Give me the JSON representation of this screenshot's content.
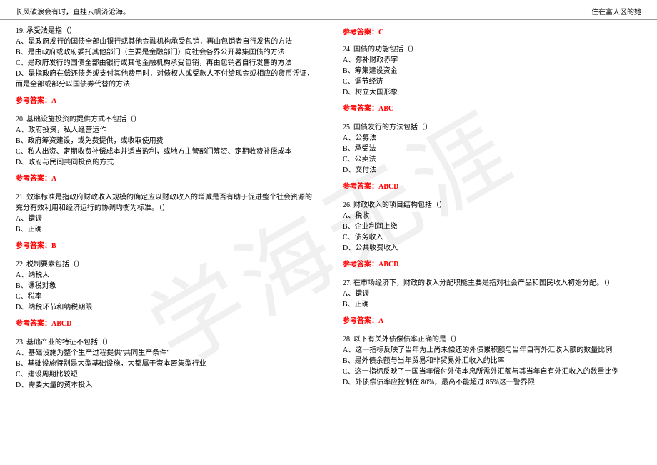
{
  "header": {
    "left": "长风破浪会有时，直挂云帆济沧海。",
    "right": "住在富人区的她"
  },
  "watermark": "学海无涯",
  "answer_label": "参考答案：",
  "left_column": {
    "q19": {
      "title": "19. 承受法是指（）",
      "opts": [
        "A、是政府发行的国债全部由银行或其他金融机构承受包销，再由包销者自行发售的方法",
        "B、是由政府或政府委托其他部门（主要是金融部门）向社会各界公开募集国债的方法",
        "C、是政府发行的国债全部由银行或其他金融机构承受包销，再由包销者自行发售的方法",
        "D、是指政府在偿还债务或支付其他费用时，对债权人或受款人不付给现金或相应的货币凭证，而是全部或部分以国债券代替的方法"
      ],
      "answer": "A"
    },
    "q20": {
      "title": "20. 基础设施投资的提供方式不包括（）",
      "opts": [
        "A、政府投资，私人经营运作",
        "B、政府筹资建设，或免费提供，或收取使用费",
        "C、私人出资、定期收费补偿成本并适当盈利，或地方主管部门筹资、定期收费补偿成本",
        "D、政府与民间共同投资的方式"
      ],
      "answer": "A"
    },
    "q21": {
      "title": "21. 效率标准是指政府财政收入规模的确定应以财政收入的增减是否有助于促进整个社会资源的充分有效利用和经济运行的协调均衡为标准。（）",
      "opts": [
        "A、错误",
        "B、正确"
      ],
      "answer": "B"
    },
    "q22": {
      "title": "22. 税制要素包括（）",
      "opts": [
        "A、纳税人",
        "B、课税对象",
        "C、税率",
        "D、纳税环节和纳税期限"
      ],
      "answer": "ABCD"
    },
    "q23": {
      "title": "23. 基础产业的特征不包括（）",
      "opts": [
        "A、基础设施为整个生产过程提供\"共同生产条件\"",
        "B、基础设施特别是大型基础设施，大都属于资本密集型行业",
        "C、建设周期比较短",
        "D、需要大量的资本投入"
      ],
      "answer": ""
    }
  },
  "right_column": {
    "prev_answer": "C",
    "q24": {
      "title": "24. 国债的功能包括（）",
      "opts": [
        "A、弥补财政赤字",
        "B、筹集建设资金",
        "C、调节经济",
        "D、树立大国形象"
      ],
      "answer": "ABC"
    },
    "q25": {
      "title": "25. 国债发行的方法包括（）",
      "opts": [
        "A、公募法",
        "B、承受法",
        "C、公卖法",
        "D、交付法"
      ],
      "answer": "ABCD"
    },
    "q26": {
      "title": "26. 财政收入的项目结构包括（）",
      "opts": [
        "A、税收",
        "B、企业利润上缴",
        "C、债务收入",
        "D、公共收费收入"
      ],
      "answer": "ABCD"
    },
    "q27": {
      "title": "27. 在市场经济下，财政的收入分配职能主要是指对社会产品和国民收入初始分配。（）",
      "opts": [
        "A、错误",
        "B、正确"
      ],
      "answer": "A"
    },
    "q28": {
      "title": "28. 以下有关外债偿债率正确的是（）",
      "opts": [
        "A、这一指标反映了当年为止尚未偿还的外债累积额与当年自有外汇收入额的数量比例",
        "B、是外债余额与当年贸易和非贸易外汇收入的比率",
        "C、这一指标反映了一国当年偿付外债本息所需外汇额与其当年自有外汇收入的数量比例",
        "D、外债偿债率应控制在 80%，最高不能超过 85%这一警界限"
      ],
      "answer": ""
    }
  }
}
